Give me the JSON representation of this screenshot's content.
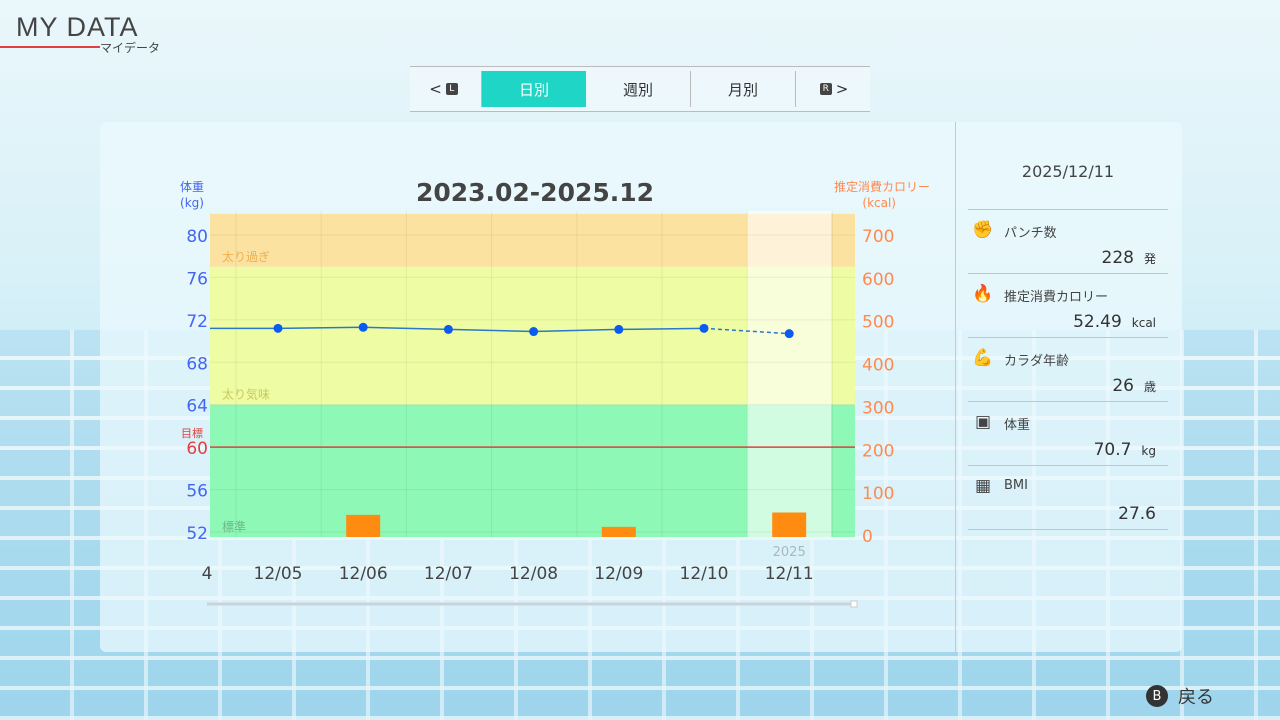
{
  "header": {
    "title": "MY DATA",
    "subtitle": "マイデータ"
  },
  "tabs": {
    "left_key": "L",
    "right_key": "R",
    "items": [
      {
        "label": "日別",
        "active": true
      },
      {
        "label": "週別"
      },
      {
        "label": "月別"
      }
    ]
  },
  "chart_data": {
    "type": "bar+line",
    "title": "2023.02-2025.12",
    "y_left": {
      "label_line1": "体重",
      "label_line2": "(kg)",
      "ticks": [
        80,
        76,
        72,
        68,
        64,
        60,
        56,
        52
      ],
      "range": [
        52,
        80
      ],
      "color": "#4466ee"
    },
    "y_right": {
      "label_line1": "推定消費カロリー",
      "label_line2": "(kcal)",
      "ticks": [
        700,
        600,
        500,
        400,
        300,
        200,
        100,
        0
      ],
      "range": [
        0,
        700
      ],
      "color": "#ff8a50"
    },
    "categories": [
      "12/05",
      "12/06",
      "12/07",
      "12/08",
      "12/09",
      "12/10",
      "12/11"
    ],
    "year_label": "2025",
    "weight": [
      71.2,
      71.3,
      71.1,
      70.9,
      71.1,
      71.2,
      70.7
    ],
    "calories": [
      0,
      47,
      0,
      0,
      19,
      0,
      52.49
    ],
    "target": {
      "label": "目標",
      "value": 60,
      "color": "#e04040"
    },
    "zones": [
      {
        "label": "太り過ぎ",
        "from": 77,
        "to": 82,
        "color": "#fce2a0"
      },
      {
        "label": "太り気味",
        "from": 64,
        "to": 77,
        "color": "#eefca4"
      },
      {
        "label": "標準",
        "from": 51.5,
        "to": 64,
        "color": "#8ef8b6"
      }
    ],
    "left_edge_label": "4",
    "selected": "12/11"
  },
  "side": {
    "date": "2025/12/11",
    "stats": [
      {
        "icon": "boxing-glove-icon",
        "label": "パンチ数",
        "value": "228",
        "unit": "発"
      },
      {
        "icon": "flame-icon",
        "label": "推定消費カロリー",
        "value": "52.49",
        "unit": "kcal"
      },
      {
        "icon": "body-icon",
        "label": "カラダ年齢",
        "value": "26",
        "unit": "歳"
      },
      {
        "icon": "scale-icon",
        "label": "体重",
        "value": "70.7",
        "unit": "kg"
      },
      {
        "icon": "calculator-icon",
        "label": "BMI",
        "value": "27.6",
        "unit": ""
      }
    ]
  },
  "footer": {
    "button": "B",
    "label": "戻る"
  }
}
